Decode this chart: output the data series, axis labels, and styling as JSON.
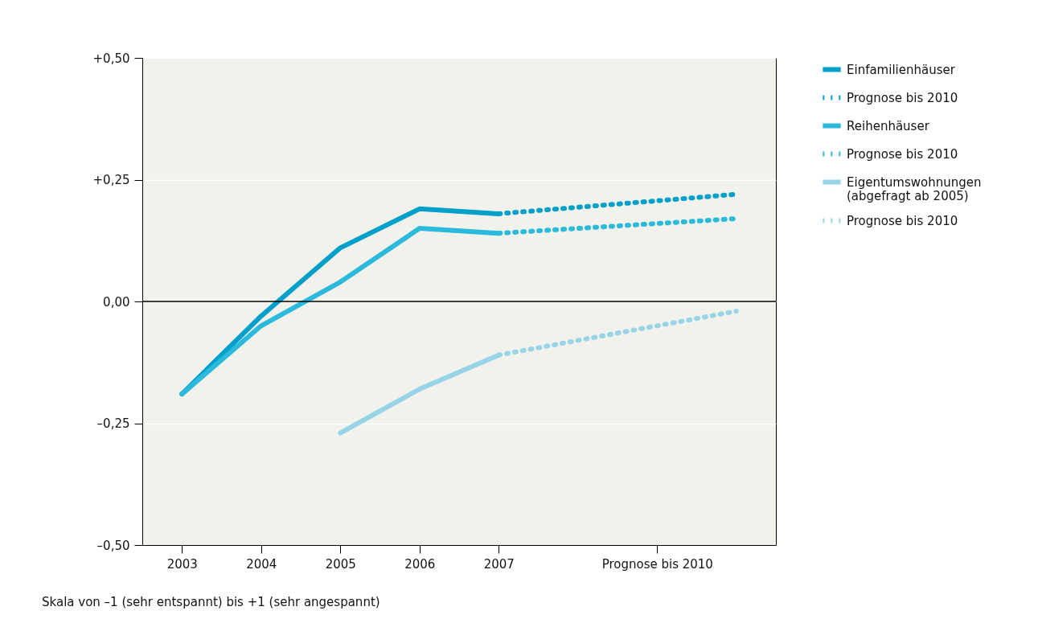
{
  "chart_data": {
    "type": "line",
    "annotations": [
      "Skala von –1 (sehr entspannt) bis +1 (sehr angespannt)"
    ],
    "xlim": [
      2002.5,
      2010.5
    ],
    "xticks": [
      2003,
      2004,
      2005,
      2006,
      2007,
      {
        "value": 2009,
        "label": "Prognose bis 2010"
      }
    ],
    "ylim": [
      -0.5,
      0.5
    ],
    "yticks": [
      {
        "value": -0.5,
        "label": "–0,50"
      },
      {
        "value": -0.25,
        "label": "–0,25"
      },
      {
        "value": 0,
        "label": "0,00"
      },
      {
        "value": 0.25,
        "label": "+0,25"
      },
      {
        "value": 0.5,
        "label": "+0,50"
      }
    ],
    "grid": "y",
    "legend": "right",
    "marker": "none",
    "ref_lines": [
      {
        "axis": "y",
        "value": 0,
        "color": "#000000"
      }
    ],
    "series": [
      {
        "name": "Einfamilienhäuser",
        "color": "#00a0cb",
        "line_style": "solid",
        "x": [
          2003,
          2004,
          2005,
          2006,
          2007
        ],
        "values": [
          -0.19,
          -0.03,
          0.11,
          0.19,
          0.18
        ]
      },
      {
        "name": "Prognose bis 2010",
        "color": "#00a0cb",
        "line_style": "dotted",
        "x": [
          2007,
          2010
        ],
        "values": [
          0.18,
          0.22
        ]
      },
      {
        "name": "Reihenhäuser",
        "color": "#2bbadb",
        "line_style": "solid",
        "x": [
          2003,
          2004,
          2005,
          2006,
          2007
        ],
        "values": [
          -0.19,
          -0.05,
          0.04,
          0.15,
          0.14
        ]
      },
      {
        "name": "Prognose bis 2010",
        "color": "#2bbadb",
        "line_style": "dotted",
        "x": [
          2007,
          2010
        ],
        "values": [
          0.14,
          0.17
        ]
      },
      {
        "name": "Eigentumswohnungen (abgefragt ab 2005)",
        "color": "#97d4e7",
        "line_style": "solid",
        "x": [
          2005,
          2006,
          2007
        ],
        "values": [
          -0.27,
          -0.18,
          -0.11
        ]
      },
      {
        "name": "Prognose bis 2010",
        "color": "#97d4e7",
        "line_style": "dotted",
        "x": [
          2007,
          2010
        ],
        "values": [
          -0.11,
          -0.02
        ]
      }
    ]
  }
}
